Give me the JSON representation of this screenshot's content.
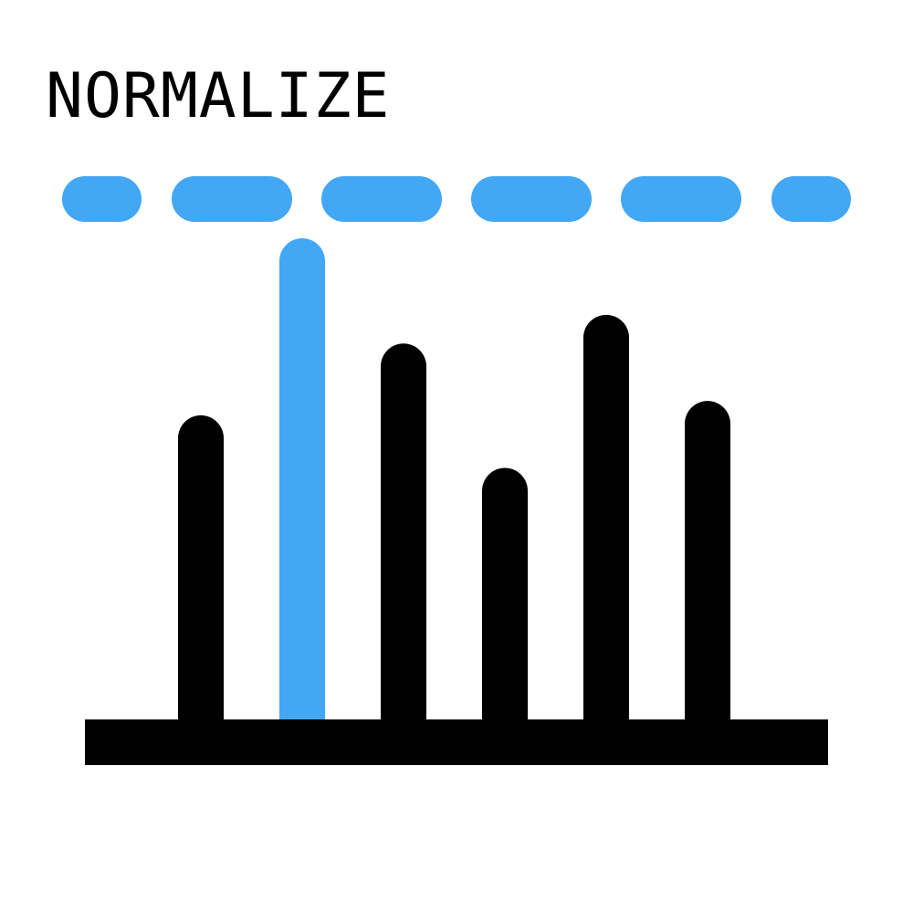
{
  "title": "NORMALIZE",
  "colors": {
    "accent": "#42A7F5",
    "ink": "#000000",
    "background": "#FFFFFF"
  },
  "icon": {
    "name": "normalize-icon",
    "threshold_line": "dashed",
    "bars": [
      {
        "level": 0.63,
        "highlighted": false
      },
      {
        "level": 1.0,
        "highlighted": true
      },
      {
        "level": 0.78,
        "highlighted": false
      },
      {
        "level": 0.52,
        "highlighted": false
      },
      {
        "level": 0.84,
        "highlighted": false
      },
      {
        "level": 0.66,
        "highlighted": false
      }
    ]
  }
}
